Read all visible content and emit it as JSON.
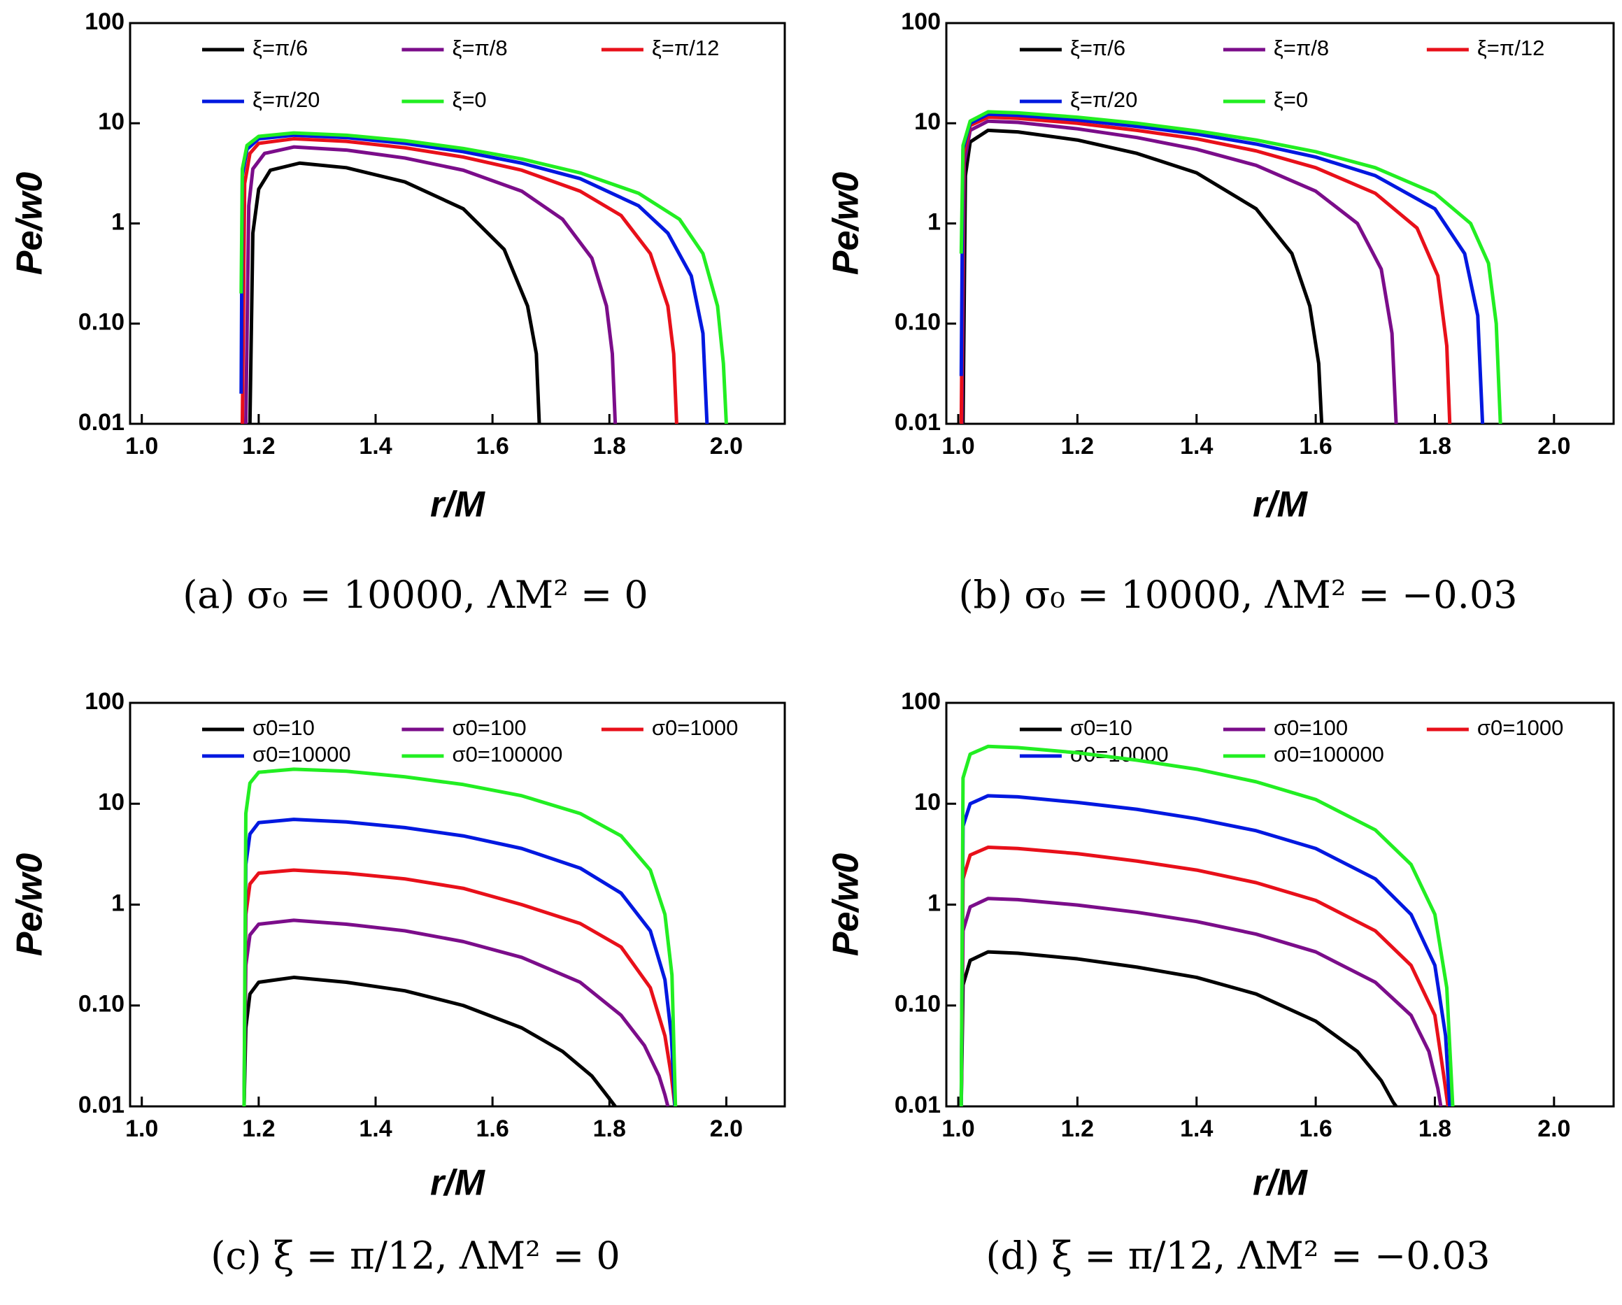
{
  "chart_data": [
    {
      "type": "line",
      "caption": "(a) σ₀ = 10000, ΛM² = 0",
      "xlabel": "r/M",
      "ylabel": "Pe/w0",
      "log_y": true,
      "xlim": [
        0.98,
        2.1
      ],
      "xticks": [
        {
          "value": 1,
          "label": "1.0"
        },
        1.2,
        1.4,
        1.6,
        1.8,
        {
          "value": 2,
          "label": "2.0"
        }
      ],
      "ylim": [
        0.01,
        100
      ],
      "yticks": [
        0.01,
        {
          "value": 0.1,
          "label": "0.10"
        },
        1,
        10,
        100
      ],
      "series": [
        {
          "name": "ξ=π/6",
          "color": "#000000",
          "x": [
            1.185,
            1.19,
            1.2,
            1.22,
            1.27,
            1.35,
            1.45,
            1.55,
            1.62,
            1.66,
            1.675,
            1.68
          ],
          "values": [
            0.01,
            0.8,
            2.2,
            3.4,
            4.0,
            3.6,
            2.6,
            1.4,
            0.55,
            0.15,
            0.05,
            0.01
          ]
        },
        {
          "name": "ξ=π/8",
          "color": "#7b0d8a",
          "x": [
            1.178,
            1.183,
            1.19,
            1.21,
            1.26,
            1.35,
            1.45,
            1.55,
            1.65,
            1.72,
            1.77,
            1.795,
            1.805,
            1.81
          ],
          "values": [
            0.01,
            1.5,
            3.5,
            5.0,
            5.8,
            5.4,
            4.5,
            3.4,
            2.1,
            1.1,
            0.45,
            0.15,
            0.05,
            0.01
          ]
        },
        {
          "name": "ξ=π/12",
          "color": "#e8101a",
          "x": [
            1.172,
            1.176,
            1.185,
            1.2,
            1.26,
            1.35,
            1.45,
            1.55,
            1.65,
            1.75,
            1.82,
            1.87,
            1.9,
            1.91,
            1.915
          ],
          "values": [
            0.01,
            2.5,
            5.0,
            6.3,
            7.0,
            6.6,
            5.7,
            4.6,
            3.4,
            2.1,
            1.2,
            0.5,
            0.15,
            0.05,
            0.01
          ]
        },
        {
          "name": "ξ=π/20",
          "color": "#0018e0",
          "x": [
            1.17,
            1.172,
            1.18,
            1.2,
            1.26,
            1.35,
            1.45,
            1.55,
            1.65,
            1.75,
            1.85,
            1.9,
            1.94,
            1.96,
            1.967
          ],
          "values": [
            0.02,
            3,
            5.5,
            7,
            7.6,
            7.2,
            6.3,
            5.2,
            4.0,
            2.8,
            1.5,
            0.8,
            0.3,
            0.08,
            0.01
          ]
        },
        {
          "name": "ξ=0",
          "color": "#22ee22",
          "x": [
            1.17,
            1.172,
            1.18,
            1.2,
            1.26,
            1.35,
            1.45,
            1.55,
            1.65,
            1.75,
            1.85,
            1.92,
            1.96,
            1.985,
            1.995,
            2.0
          ],
          "values": [
            0.2,
            3.5,
            6,
            7.4,
            8,
            7.6,
            6.7,
            5.6,
            4.4,
            3.2,
            2.0,
            1.1,
            0.5,
            0.15,
            0.04,
            0.01
          ]
        }
      ]
    },
    {
      "type": "line",
      "caption": "(b) σ₀ = 10000, ΛM² = −0.03",
      "xlabel": "r/M",
      "ylabel": "Pe/w0",
      "log_y": true,
      "xlim": [
        0.98,
        2.1
      ],
      "xticks": [
        {
          "value": 1,
          "label": "1.0"
        },
        1.2,
        1.4,
        1.6,
        1.8,
        {
          "value": 2,
          "label": "2.0"
        }
      ],
      "ylim": [
        0.01,
        100
      ],
      "yticks": [
        0.01,
        {
          "value": 0.1,
          "label": "0.10"
        },
        1,
        10,
        100
      ],
      "series": [
        {
          "name": "ξ=π/6",
          "color": "#000000",
          "x": [
            1.008,
            1.012,
            1.02,
            1.05,
            1.1,
            1.2,
            1.3,
            1.4,
            1.5,
            1.56,
            1.59,
            1.605,
            1.61
          ],
          "values": [
            0.01,
            3,
            6.5,
            8.5,
            8.2,
            6.8,
            5.0,
            3.2,
            1.4,
            0.5,
            0.15,
            0.04,
            0.01
          ]
        },
        {
          "name": "ξ=π/8",
          "color": "#7b0d8a",
          "x": [
            1.006,
            1.01,
            1.02,
            1.05,
            1.1,
            1.2,
            1.3,
            1.4,
            1.5,
            1.6,
            1.67,
            1.71,
            1.728,
            1.735
          ],
          "values": [
            0.01,
            4,
            8.5,
            10.5,
            10.2,
            8.8,
            7.2,
            5.5,
            3.8,
            2.1,
            1.0,
            0.35,
            0.08,
            0.01
          ]
        },
        {
          "name": "ξ=π/12",
          "color": "#e8101a",
          "x": [
            1.005,
            1.009,
            1.02,
            1.05,
            1.1,
            1.2,
            1.3,
            1.4,
            1.5,
            1.6,
            1.7,
            1.77,
            1.805,
            1.82,
            1.825
          ],
          "values": [
            0.01,
            5,
            9.5,
            11.5,
            11.2,
            10,
            8.5,
            7,
            5.3,
            3.6,
            2.0,
            0.9,
            0.3,
            0.06,
            0.01
          ]
        },
        {
          "name": "ξ=π/20",
          "color": "#0018e0",
          "x": [
            1.005,
            1.008,
            1.02,
            1.05,
            1.1,
            1.2,
            1.3,
            1.4,
            1.5,
            1.6,
            1.7,
            1.8,
            1.85,
            1.872,
            1.88
          ],
          "values": [
            0.03,
            5.5,
            10,
            12.3,
            12,
            10.8,
            9.3,
            7.8,
            6.2,
            4.6,
            3.0,
            1.4,
            0.5,
            0.12,
            0.01
          ]
        },
        {
          "name": "ξ=0",
          "color": "#22ee22",
          "x": [
            1.005,
            1.008,
            1.02,
            1.05,
            1.1,
            1.2,
            1.3,
            1.4,
            1.5,
            1.6,
            1.7,
            1.8,
            1.86,
            1.89,
            1.903,
            1.91
          ],
          "values": [
            0.5,
            6,
            10.5,
            13,
            12.7,
            11.5,
            10,
            8.4,
            6.8,
            5.2,
            3.6,
            2.0,
            1.0,
            0.4,
            0.1,
            0.01
          ]
        }
      ]
    },
    {
      "type": "line",
      "caption": "(c) ξ = π/12, ΛM² = 0",
      "xlabel": "r/M",
      "ylabel": "Pe/w0",
      "log_y": true,
      "xlim": [
        0.98,
        2.1
      ],
      "xticks": [
        {
          "value": 1,
          "label": "1.0"
        },
        1.2,
        1.4,
        1.6,
        1.8,
        {
          "value": 2,
          "label": "2.0"
        }
      ],
      "ylim": [
        0.01,
        100
      ],
      "yticks": [
        0.01,
        {
          "value": 0.1,
          "label": "0.10"
        },
        1,
        10,
        100
      ],
      "series": [
        {
          "name": "σ0=10",
          "color": "#000000",
          "x": [
            1.175,
            1.178,
            1.185,
            1.2,
            1.26,
            1.35,
            1.45,
            1.55,
            1.65,
            1.72,
            1.77,
            1.795,
            1.81
          ],
          "values": [
            0.01,
            0.06,
            0.13,
            0.17,
            0.19,
            0.17,
            0.14,
            0.1,
            0.06,
            0.035,
            0.02,
            0.013,
            0.01
          ]
        },
        {
          "name": "σ0=100",
          "color": "#7b0d8a",
          "x": [
            1.175,
            1.178,
            1.185,
            1.2,
            1.26,
            1.35,
            1.45,
            1.55,
            1.65,
            1.75,
            1.82,
            1.86,
            1.885,
            1.895,
            1.9
          ],
          "values": [
            0.01,
            0.25,
            0.5,
            0.64,
            0.7,
            0.64,
            0.55,
            0.43,
            0.3,
            0.17,
            0.08,
            0.04,
            0.02,
            0.013,
            0.01
          ]
        },
        {
          "name": "σ0=1000",
          "color": "#e8101a",
          "x": [
            1.175,
            1.178,
            1.185,
            1.2,
            1.26,
            1.35,
            1.45,
            1.55,
            1.65,
            1.75,
            1.82,
            1.87,
            1.895,
            1.906,
            1.912
          ],
          "values": [
            0.01,
            0.8,
            1.6,
            2.05,
            2.2,
            2.05,
            1.8,
            1.45,
            1.0,
            0.65,
            0.38,
            0.15,
            0.05,
            0.02,
            0.01
          ]
        },
        {
          "name": "σ0=10000",
          "color": "#0018e0",
          "x": [
            1.175,
            1.178,
            1.185,
            1.2,
            1.26,
            1.35,
            1.45,
            1.55,
            1.65,
            1.75,
            1.82,
            1.87,
            1.895,
            1.906,
            1.912
          ],
          "values": [
            0.01,
            2.5,
            5,
            6.5,
            7,
            6.6,
            5.8,
            4.8,
            3.6,
            2.3,
            1.3,
            0.55,
            0.18,
            0.05,
            0.01
          ]
        },
        {
          "name": "σ0=100000",
          "color": "#22ee22",
          "x": [
            1.175,
            1.178,
            1.185,
            1.2,
            1.26,
            1.35,
            1.45,
            1.55,
            1.65,
            1.75,
            1.82,
            1.87,
            1.895,
            1.907,
            1.913
          ],
          "values": [
            0.01,
            8,
            16,
            20.5,
            22,
            21,
            18.5,
            15.5,
            12,
            8,
            4.8,
            2.2,
            0.8,
            0.2,
            0.01
          ]
        }
      ]
    },
    {
      "type": "line",
      "caption": "(d) ξ = π/12, ΛM² = −0.03",
      "xlabel": "r/M",
      "ylabel": "Pe/w0",
      "log_y": true,
      "xlim": [
        0.98,
        2.1
      ],
      "xticks": [
        {
          "value": 1,
          "label": "1.0"
        },
        1.2,
        1.4,
        1.6,
        1.8,
        {
          "value": 2,
          "label": "2.0"
        }
      ],
      "ylim": [
        0.01,
        100
      ],
      "yticks": [
        0.01,
        {
          "value": 0.1,
          "label": "0.10"
        },
        1,
        10,
        100
      ],
      "series": [
        {
          "name": "σ0=10",
          "color": "#000000",
          "x": [
            1.005,
            1.008,
            1.02,
            1.05,
            1.1,
            1.2,
            1.3,
            1.4,
            1.5,
            1.6,
            1.67,
            1.71,
            1.73,
            1.735
          ],
          "values": [
            0.01,
            0.16,
            0.28,
            0.34,
            0.33,
            0.29,
            0.24,
            0.19,
            0.13,
            0.07,
            0.035,
            0.018,
            0.011,
            0.01
          ]
        },
        {
          "name": "σ0=100",
          "color": "#7b0d8a",
          "x": [
            1.005,
            1.008,
            1.02,
            1.05,
            1.1,
            1.2,
            1.3,
            1.4,
            1.5,
            1.6,
            1.7,
            1.76,
            1.79,
            1.805,
            1.81
          ],
          "values": [
            0.01,
            0.55,
            0.95,
            1.15,
            1.12,
            0.99,
            0.84,
            0.68,
            0.51,
            0.34,
            0.17,
            0.08,
            0.035,
            0.015,
            0.01
          ]
        },
        {
          "name": "σ0=1000",
          "color": "#e8101a",
          "x": [
            1.005,
            1.008,
            1.02,
            1.05,
            1.1,
            1.2,
            1.3,
            1.4,
            1.5,
            1.6,
            1.7,
            1.76,
            1.8,
            1.815,
            1.822
          ],
          "values": [
            0.01,
            1.8,
            3.1,
            3.7,
            3.6,
            3.2,
            2.7,
            2.2,
            1.65,
            1.1,
            0.55,
            0.25,
            0.08,
            0.02,
            0.01
          ]
        },
        {
          "name": "σ0=10000",
          "color": "#0018e0",
          "x": [
            1.005,
            1.008,
            1.02,
            1.05,
            1.1,
            1.2,
            1.3,
            1.4,
            1.5,
            1.6,
            1.7,
            1.76,
            1.8,
            1.818,
            1.825
          ],
          "values": [
            0.01,
            6,
            10,
            12,
            11.7,
            10.3,
            8.8,
            7.1,
            5.4,
            3.6,
            1.8,
            0.8,
            0.25,
            0.05,
            0.01
          ]
        },
        {
          "name": "σ0=100000",
          "color": "#22ee22",
          "x": [
            1.005,
            1.008,
            1.02,
            1.05,
            1.1,
            1.2,
            1.3,
            1.4,
            1.5,
            1.6,
            1.7,
            1.76,
            1.8,
            1.82,
            1.83
          ],
          "values": [
            0.01,
            18,
            31,
            37,
            36,
            32,
            27,
            22,
            16.5,
            11,
            5.5,
            2.5,
            0.8,
            0.15,
            0.01
          ]
        }
      ]
    }
  ]
}
